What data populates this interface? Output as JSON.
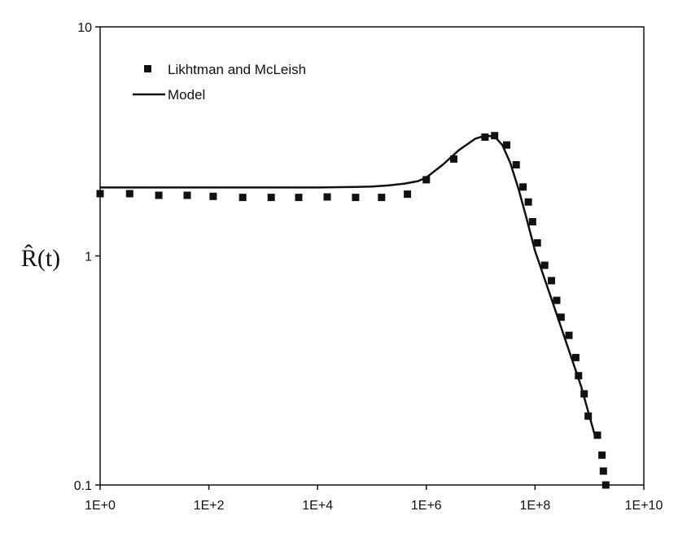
{
  "chart_data": {
    "type": "scatter",
    "title": "",
    "xlabel": "",
    "ylabel": "R̂(t)",
    "xscale": "log",
    "yscale": "log",
    "xlim": [
      1,
      10000000000
    ],
    "ylim": [
      0.1,
      10
    ],
    "x_ticks": [
      {
        "value": 1,
        "label": "1E+0"
      },
      {
        "value": 100,
        "label": "1E+2"
      },
      {
        "value": 10000,
        "label": "1E+4"
      },
      {
        "value": 1000000,
        "label": "1E+6"
      },
      {
        "value": 100000000,
        "label": "1E+8"
      },
      {
        "value": 10000000000,
        "label": "1E+10"
      }
    ],
    "y_ticks": [
      {
        "value": 0.1,
        "label": "0.1"
      },
      {
        "value": 1,
        "label": "1"
      },
      {
        "value": 10,
        "label": "10"
      }
    ],
    "grid": false,
    "legend_position": "top-left",
    "series": [
      {
        "name": "Likhtman and McLeish",
        "kind": "markers",
        "marker": "square",
        "color": "#111111",
        "x": [
          1,
          3.5,
          12,
          40,
          120,
          420,
          1400,
          4500,
          15000,
          50000,
          150000,
          450000,
          1000000,
          3200000,
          12000000,
          18000000,
          30000000,
          45000000,
          60000000,
          75000000,
          90000000,
          110000000,
          150000000,
          200000000,
          250000000,
          300000000,
          420000000,
          560000000,
          630000000,
          800000000,
          950000000,
          1400000000,
          1700000000,
          1800000000,
          2000000000
        ],
        "y": [
          1.87,
          1.87,
          1.84,
          1.84,
          1.82,
          1.8,
          1.8,
          1.8,
          1.81,
          1.8,
          1.8,
          1.86,
          2.15,
          2.65,
          3.3,
          3.35,
          3.05,
          2.5,
          2.0,
          1.72,
          1.41,
          1.14,
          0.91,
          0.78,
          0.64,
          0.54,
          0.45,
          0.36,
          0.3,
          0.25,
          0.2,
          0.165,
          0.135,
          0.115,
          0.1
        ]
      },
      {
        "name": "Model",
        "kind": "line",
        "color": "#111111",
        "x": [
          1,
          10,
          100,
          1000,
          10000,
          50000,
          100000,
          200000,
          400000,
          700000,
          1000000,
          2000000,
          4000000,
          8000000,
          12000000,
          18000000,
          25000000,
          35000000,
          50000000,
          70000000,
          100000000,
          200000000,
          400000000,
          700000000,
          1000000000,
          1300000000
        ],
        "y": [
          1.99,
          1.99,
          1.99,
          1.99,
          1.99,
          2.0,
          2.01,
          2.03,
          2.07,
          2.12,
          2.2,
          2.5,
          2.9,
          3.25,
          3.35,
          3.32,
          3.05,
          2.55,
          1.95,
          1.45,
          1.05,
          0.65,
          0.4,
          0.27,
          0.2,
          0.16
        ]
      }
    ]
  }
}
